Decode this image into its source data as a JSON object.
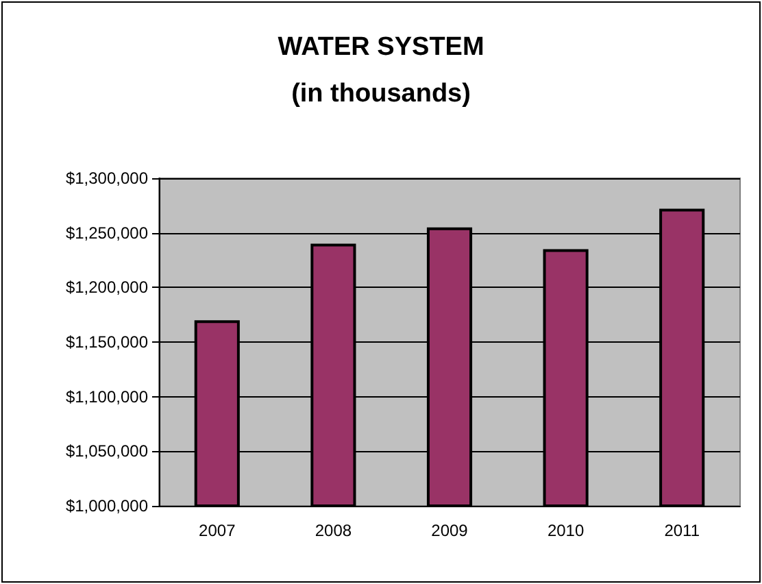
{
  "chart_data": {
    "type": "bar",
    "title": "WATER SYSTEM",
    "subtitle": "(in thousands)",
    "categories": [
      "2007",
      "2008",
      "2009",
      "2010",
      "2011"
    ],
    "values": [
      1170000,
      1240000,
      1255000,
      1235000,
      1272000
    ],
    "color": "#993366",
    "ylim": [
      1000000,
      1300000
    ],
    "yticks": [
      {
        "value": 1000000,
        "label": "$1,000,000"
      },
      {
        "value": 1050000,
        "label": "$1,050,000"
      },
      {
        "value": 1100000,
        "label": "$1,100,000"
      },
      {
        "value": 1150000,
        "label": "$1,150,000"
      },
      {
        "value": 1200000,
        "label": "$1,200,000"
      },
      {
        "value": 1250000,
        "label": "$1,250,000"
      },
      {
        "value": 1300000,
        "label": "$1,300,000"
      }
    ],
    "grid": "y"
  }
}
